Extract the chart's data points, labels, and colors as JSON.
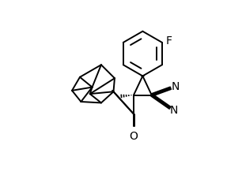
{
  "figure_width": 2.87,
  "figure_height": 2.41,
  "dpi": 100,
  "background": "#ffffff",
  "line_color": "#000000",
  "line_width": 1.4,
  "font_size": 9,
  "F_label": "F",
  "O_label": "O",
  "N_label": "N"
}
